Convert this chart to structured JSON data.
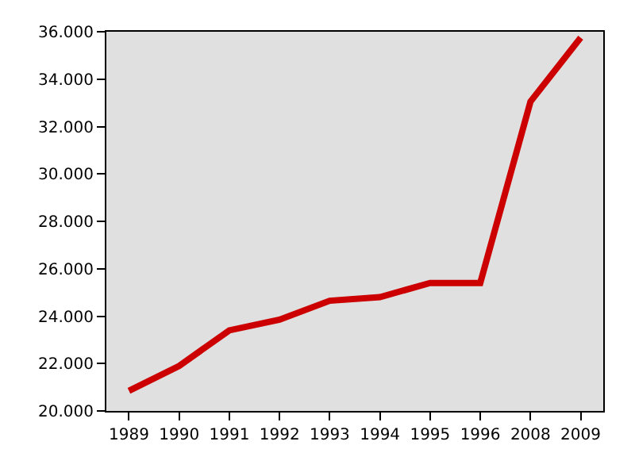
{
  "chart_data": {
    "type": "line",
    "categories": [
      "1989",
      "1990",
      "1991",
      "1992",
      "1993",
      "1994",
      "1995",
      "1996",
      "2008",
      "2009"
    ],
    "series": [
      {
        "color": "#cc0000",
        "values": [
          20850,
          21900,
          23400,
          23850,
          24650,
          24800,
          25400,
          25400,
          33050,
          35750
        ]
      }
    ],
    "ylim": [
      20000,
      36000
    ],
    "yticks": [
      {
        "value": 20000,
        "label": "20.000"
      },
      {
        "value": 22000,
        "label": "22.000"
      },
      {
        "value": 24000,
        "label": "24.000"
      },
      {
        "value": 26000,
        "label": "26.000"
      },
      {
        "value": 28000,
        "label": "28.000"
      },
      {
        "value": 30000,
        "label": "30.000"
      },
      {
        "value": 32000,
        "label": "32.000"
      },
      {
        "value": 34000,
        "label": "34.000"
      },
      {
        "value": 36000,
        "label": "36.000"
      }
    ],
    "marker": "none",
    "line_style": "solid"
  }
}
